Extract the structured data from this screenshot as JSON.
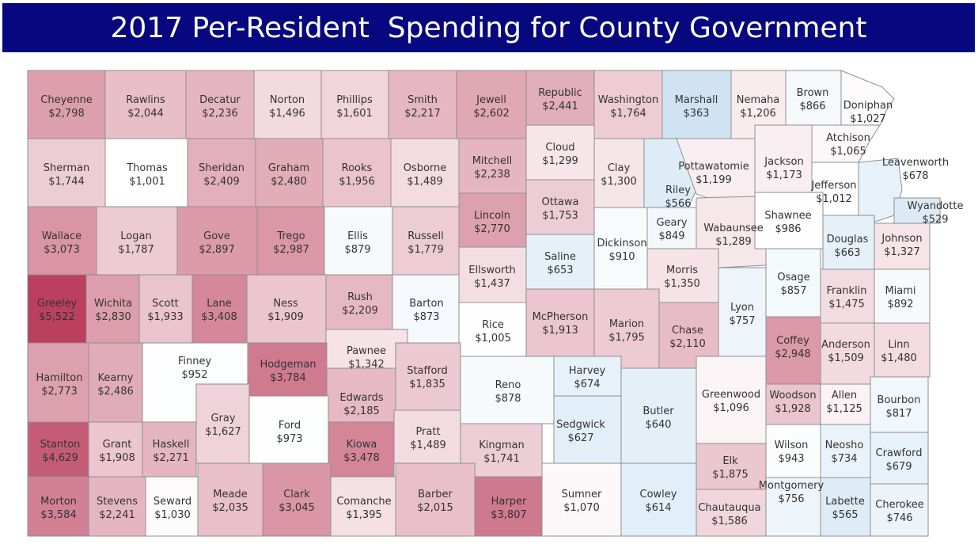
{
  "title": "2017 Per-Resident  Spending for County Government",
  "legend_scale": {
    "low_color": "#cfe3f3",
    "mid_color": "#ffffff",
    "high_color": "#bb3f5e",
    "mid_value": 1000
  },
  "counties": [
    {
      "name": "Cheyenne",
      "value": "$2,798"
    },
    {
      "name": "Rawlins",
      "value": "$2,044"
    },
    {
      "name": "Decatur",
      "value": "$2,236"
    },
    {
      "name": "Norton",
      "value": "$1,496"
    },
    {
      "name": "Phillips",
      "value": "$1,601"
    },
    {
      "name": "Smith",
      "value": "$2,217"
    },
    {
      "name": "Jewell",
      "value": "$2,602"
    },
    {
      "name": "Republic",
      "value": "$2,441"
    },
    {
      "name": "Washington",
      "value": "$1,764"
    },
    {
      "name": "Marshall",
      "value": "$363"
    },
    {
      "name": "Nemaha",
      "value": "$1,206"
    },
    {
      "name": "Brown",
      "value": "$866"
    },
    {
      "name": "Doniphan",
      "value": "$1,027"
    },
    {
      "name": "Sherman",
      "value": "$1,744"
    },
    {
      "name": "Thomas",
      "value": "$1,001"
    },
    {
      "name": "Sheridan",
      "value": "$2,409"
    },
    {
      "name": "Graham",
      "value": "$2,480"
    },
    {
      "name": "Rooks",
      "value": "$1,956"
    },
    {
      "name": "Osborne",
      "value": "$1,489"
    },
    {
      "name": "Mitchell",
      "value": "$2,238"
    },
    {
      "name": "Cloud",
      "value": "$1,299"
    },
    {
      "name": "Clay",
      "value": "$1,300"
    },
    {
      "name": "Riley",
      "value": "$566"
    },
    {
      "name": "Pottawatomie",
      "value": "$1,199"
    },
    {
      "name": "Jackson",
      "value": "$1,173"
    },
    {
      "name": "Atchison",
      "value": "$1,065"
    },
    {
      "name": "Jefferson",
      "value": "$1,012"
    },
    {
      "name": "Leavenworth",
      "value": "$678"
    },
    {
      "name": "Wyandotte",
      "value": "$529"
    },
    {
      "name": "Wallace",
      "value": "$3,073"
    },
    {
      "name": "Logan",
      "value": "$1,787"
    },
    {
      "name": "Gove",
      "value": "$2,897"
    },
    {
      "name": "Trego",
      "value": "$2,987"
    },
    {
      "name": "Ellis",
      "value": "$879"
    },
    {
      "name": "Russell",
      "value": "$1,779"
    },
    {
      "name": "Lincoln",
      "value": "$2,770"
    },
    {
      "name": "Ottawa",
      "value": "$1,753"
    },
    {
      "name": "Saline",
      "value": "$653"
    },
    {
      "name": "Dickinson",
      "value": "$910"
    },
    {
      "name": "Geary",
      "value": "$849"
    },
    {
      "name": "Wabaunsee",
      "value": "$1,289"
    },
    {
      "name": "Shawnee",
      "value": "$986"
    },
    {
      "name": "Douglas",
      "value": "$663"
    },
    {
      "name": "Johnson",
      "value": "$1,327"
    },
    {
      "name": "Ellsworth",
      "value": "$1,437"
    },
    {
      "name": "Morris",
      "value": "$1,350"
    },
    {
      "name": "Osage",
      "value": "$857"
    },
    {
      "name": "Franklin",
      "value": "$1,475"
    },
    {
      "name": "Miami",
      "value": "$892"
    },
    {
      "name": "Greeley",
      "value": "$5,522"
    },
    {
      "name": "Wichita",
      "value": "$2,830"
    },
    {
      "name": "Scott",
      "value": "$1,933"
    },
    {
      "name": "Lane",
      "value": "$3,408"
    },
    {
      "name": "Ness",
      "value": "$1,909"
    },
    {
      "name": "Rush",
      "value": "$2,209"
    },
    {
      "name": "Barton",
      "value": "$873"
    },
    {
      "name": "Rice",
      "value": "$1,005"
    },
    {
      "name": "McPherson",
      "value": "$1,913"
    },
    {
      "name": "Marion",
      "value": "$1,795"
    },
    {
      "name": "Chase",
      "value": "$2,110"
    },
    {
      "name": "Lyon",
      "value": "$757"
    },
    {
      "name": "Coffey",
      "value": "$2,948"
    },
    {
      "name": "Anderson",
      "value": "$1,509"
    },
    {
      "name": "Linn",
      "value": "$1,480"
    },
    {
      "name": "Pawnee",
      "value": "$1,342"
    },
    {
      "name": "Hamilton",
      "value": "$2,773"
    },
    {
      "name": "Kearny",
      "value": "$2,486"
    },
    {
      "name": "Finney",
      "value": "$952"
    },
    {
      "name": "Hodgeman",
      "value": "$3,784"
    },
    {
      "name": "Edwards",
      "value": "$2,185"
    },
    {
      "name": "Stafford",
      "value": "$1,835"
    },
    {
      "name": "Reno",
      "value": "$878"
    },
    {
      "name": "Harvey",
      "value": "$674"
    },
    {
      "name": "Butler",
      "value": "$640"
    },
    {
      "name": "Greenwood",
      "value": "$1,096"
    },
    {
      "name": "Woodson",
      "value": "$1,928"
    },
    {
      "name": "Allen",
      "value": "$1,125"
    },
    {
      "name": "Bourbon",
      "value": "$817"
    },
    {
      "name": "Gray",
      "value": "$1,627"
    },
    {
      "name": "Ford",
      "value": "$973"
    },
    {
      "name": "Sedgwick",
      "value": "$627"
    },
    {
      "name": "Stanton",
      "value": "$4,629"
    },
    {
      "name": "Grant",
      "value": "$1,908"
    },
    {
      "name": "Haskell",
      "value": "$2,271"
    },
    {
      "name": "Kiowa",
      "value": "$3,478"
    },
    {
      "name": "Pratt",
      "value": "$1,489"
    },
    {
      "name": "Kingman",
      "value": "$1,741"
    },
    {
      "name": "Elk",
      "value": "$1,875"
    },
    {
      "name": "Wilson",
      "value": "$943"
    },
    {
      "name": "Neosho",
      "value": "$734"
    },
    {
      "name": "Crawford",
      "value": "$679"
    },
    {
      "name": "Morton",
      "value": "$3,584"
    },
    {
      "name": "Stevens",
      "value": "$2,241"
    },
    {
      "name": "Seward",
      "value": "$1,030"
    },
    {
      "name": "Meade",
      "value": "$2,035"
    },
    {
      "name": "Clark",
      "value": "$3,045"
    },
    {
      "name": "Comanche",
      "value": "$1,395"
    },
    {
      "name": "Barber",
      "value": "$2,015"
    },
    {
      "name": "Harper",
      "value": "$3,807"
    },
    {
      "name": "Sumner",
      "value": "$1,070"
    },
    {
      "name": "Cowley",
      "value": "$614"
    },
    {
      "name": "Chautauqua",
      "value": "$1,586"
    },
    {
      "name": "Montgomery",
      "value": "$756"
    },
    {
      "name": "Labette",
      "value": "$565"
    },
    {
      "name": "Cherokee",
      "value": "$746"
    }
  ]
}
